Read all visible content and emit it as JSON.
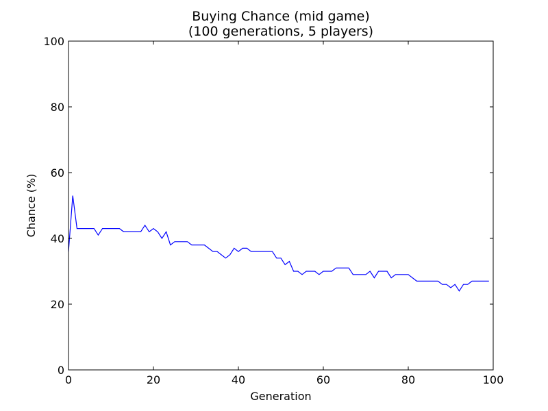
{
  "chart_data": {
    "type": "line",
    "title": "Buying Chance (mid game)",
    "subtitle": "(100 generations, 5 players)",
    "xlabel": "Generation",
    "ylabel": "Chance (%)",
    "xlim": [
      0,
      100
    ],
    "ylim": [
      0,
      100
    ],
    "xticks": [
      "0",
      "20",
      "40",
      "60",
      "80",
      "100"
    ],
    "yticks": [
      "0",
      "20",
      "40",
      "60",
      "80",
      "100"
    ],
    "grid": false,
    "legend": "none",
    "line_color": "#0000ff",
    "series": [
      {
        "x": [
          0,
          1,
          2,
          3,
          4,
          5,
          6,
          7,
          8,
          9,
          10,
          11,
          12,
          13,
          14,
          15,
          16,
          17,
          18,
          19,
          20,
          21,
          22,
          23,
          24,
          25,
          26,
          27,
          28,
          29,
          30,
          31,
          32,
          33,
          34,
          35,
          36,
          37,
          38,
          39,
          40,
          41,
          42,
          43,
          44,
          45,
          46,
          47,
          48,
          49,
          50,
          51,
          52,
          53,
          54,
          55,
          56,
          57,
          58,
          59,
          60,
          61,
          62,
          63,
          64,
          65,
          66,
          67,
          68,
          69,
          70,
          71,
          72,
          73,
          74,
          75,
          76,
          77,
          78,
          79,
          80,
          81,
          82,
          83,
          84,
          85,
          86,
          87,
          88,
          89,
          90,
          91,
          92,
          93,
          94,
          95,
          96,
          97,
          98,
          99
        ],
        "values": [
          36,
          53,
          43,
          43,
          43,
          43,
          43,
          41,
          43,
          43,
          43,
          43,
          43,
          42,
          42,
          42,
          42,
          42,
          44,
          42,
          43,
          42,
          40,
          42,
          38,
          39,
          39,
          39,
          39,
          38,
          38,
          38,
          38,
          37,
          36,
          36,
          35,
          34,
          35,
          37,
          36,
          37,
          37,
          36,
          36,
          36,
          36,
          36,
          36,
          34,
          34,
          32,
          33,
          30,
          30,
          29,
          30,
          30,
          30,
          29,
          30,
          30,
          30,
          31,
          31,
          31,
          31,
          29,
          29,
          29,
          29,
          30,
          28,
          30,
          30,
          30,
          28,
          29,
          29,
          29,
          29,
          28,
          27,
          27,
          27,
          27,
          27,
          27,
          26,
          26,
          25,
          26,
          24,
          26,
          26,
          27,
          27,
          27,
          27,
          27
        ]
      }
    ]
  }
}
